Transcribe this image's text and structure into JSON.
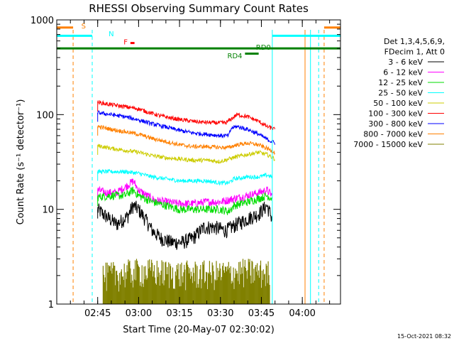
{
  "chart_data": {
    "type": "line",
    "title": "RHESSI Observing Summary Count Rates",
    "xlabel": "Start Time (20-May-07 02:30:02)",
    "ylabel": "Count Rate (s⁻¹ detector⁻¹)",
    "ylog": true,
    "ylim": [
      1,
      1000
    ],
    "xlim_minutes": [
      0,
      104
    ],
    "x_unit": "minutes after 02:30:02",
    "x_ticks": [
      {
        "label": "02:45",
        "minute": 15
      },
      {
        "label": "03:00",
        "minute": 30
      },
      {
        "label": "03:15",
        "minute": 45
      },
      {
        "label": "03:30",
        "minute": 60
      },
      {
        "label": "03:45",
        "minute": 75
      },
      {
        "label": "04:00",
        "minute": 90
      }
    ],
    "y_ticks": [
      {
        "label": "1",
        "value": 1
      },
      {
        "label": "10",
        "value": 10
      },
      {
        "label": "100",
        "value": 100
      },
      {
        "label": "1000",
        "value": 1000
      }
    ],
    "legend_header": [
      "Det 1,3,4,5,6,9,",
      "FDecim 1, Att 0"
    ],
    "legend_position": "right",
    "series": [
      {
        "name": "3 - 6 keV",
        "color": "#000000",
        "x": [
          15,
          18,
          22,
          26,
          28,
          30,
          33,
          35,
          38,
          42,
          46,
          50,
          54,
          58,
          62,
          66,
          70,
          74,
          77,
          79
        ],
        "y": [
          10,
          8.5,
          7,
          8.5,
          11,
          10,
          7.5,
          6,
          5,
          4.5,
          4.5,
          5,
          6.5,
          6.5,
          6,
          7,
          8,
          9,
          11,
          8
        ]
      },
      {
        "name": "6 - 12 keV",
        "color": "#ff00ff",
        "x": [
          15,
          18,
          22,
          26,
          28,
          30,
          33,
          36,
          40,
          45,
          50,
          55,
          60,
          65,
          70,
          74,
          77,
          79
        ],
        "y": [
          16,
          15,
          15,
          18,
          20,
          16,
          14,
          12.5,
          12,
          11.5,
          11.5,
          12,
          12,
          13,
          14,
          15,
          16,
          14
        ]
      },
      {
        "name": "12 - 25 keV",
        "color": "#00dd00",
        "x": [
          15,
          20,
          25,
          28,
          30,
          35,
          40,
          45,
          50,
          55,
          60,
          63,
          65,
          70,
          74,
          77,
          79
        ],
        "y": [
          13.5,
          14,
          14,
          16,
          14,
          12,
          11,
          10,
          10,
          10,
          10,
          9.5,
          11,
          12,
          13,
          14,
          13
        ]
      },
      {
        "name": "25 - 50 keV",
        "color": "#00ffff",
        "x": [
          15,
          20,
          25,
          30,
          35,
          40,
          45,
          50,
          55,
          60,
          63,
          65,
          70,
          74,
          77,
          79
        ],
        "y": [
          25,
          25,
          25,
          24,
          22,
          21,
          20,
          20,
          20,
          19,
          19,
          21,
          22,
          22,
          23,
          22
        ]
      },
      {
        "name": "50 - 100 keV",
        "color": "#cccc00",
        "x": [
          15,
          20,
          25,
          30,
          35,
          40,
          45,
          50,
          55,
          60,
          63,
          66,
          70,
          74,
          77,
          80
        ],
        "y": [
          47,
          44,
          42,
          40,
          37,
          35,
          34,
          33,
          33,
          32,
          34,
          36,
          38,
          40,
          38,
          34
        ]
      },
      {
        "name": "100 - 300 keV",
        "color": "#ff0000",
        "x": [
          15,
          18,
          22,
          26,
          30,
          34,
          38,
          42,
          46,
          50,
          54,
          58,
          62,
          64,
          66,
          70,
          74,
          77,
          80
        ],
        "y": [
          135,
          130,
          125,
          120,
          115,
          105,
          97,
          92,
          88,
          85,
          83,
          82,
          82,
          90,
          100,
          95,
          85,
          75,
          70
        ]
      },
      {
        "name": "300 - 800 keV",
        "color": "#0000ff",
        "x": [
          15,
          20,
          25,
          30,
          35,
          40,
          45,
          50,
          55,
          60,
          63,
          64,
          66,
          70,
          74,
          77,
          80
        ],
        "y": [
          105,
          100,
          95,
          88,
          80,
          74,
          68,
          64,
          62,
          60,
          60,
          72,
          75,
          70,
          62,
          55,
          50
        ]
      },
      {
        "name": "800 - 7000 keV",
        "color": "#ff8000",
        "x": [
          15,
          20,
          25,
          30,
          35,
          40,
          45,
          50,
          55,
          60,
          63,
          66,
          70,
          74,
          77,
          80
        ],
        "y": [
          75,
          70,
          66,
          62,
          56,
          52,
          48,
          46,
          46,
          45,
          45,
          48,
          50,
          48,
          44,
          40
        ]
      },
      {
        "name": "7000 - 15000 keV",
        "color": "#808000",
        "x": [
          17,
          30,
          45,
          60,
          70,
          78
        ],
        "y": [
          1.6,
          1.8,
          1.7,
          1.7,
          1.8,
          1.7
        ]
      }
    ],
    "annotations": [
      {
        "label": "S",
        "color": "#ff8000",
        "kind": "SAA"
      },
      {
        "label": "N",
        "color": "#00ffff",
        "kind": "Night"
      },
      {
        "label": "F",
        "color": "#ff0000",
        "kind": "Flare"
      },
      {
        "label": "RD4",
        "color": "#008000",
        "kind": "Decimation"
      },
      {
        "label": "RD0",
        "color": "#008000",
        "kind": "Decimation"
      }
    ],
    "footer_date": "15-Oct-2021 08:32"
  }
}
